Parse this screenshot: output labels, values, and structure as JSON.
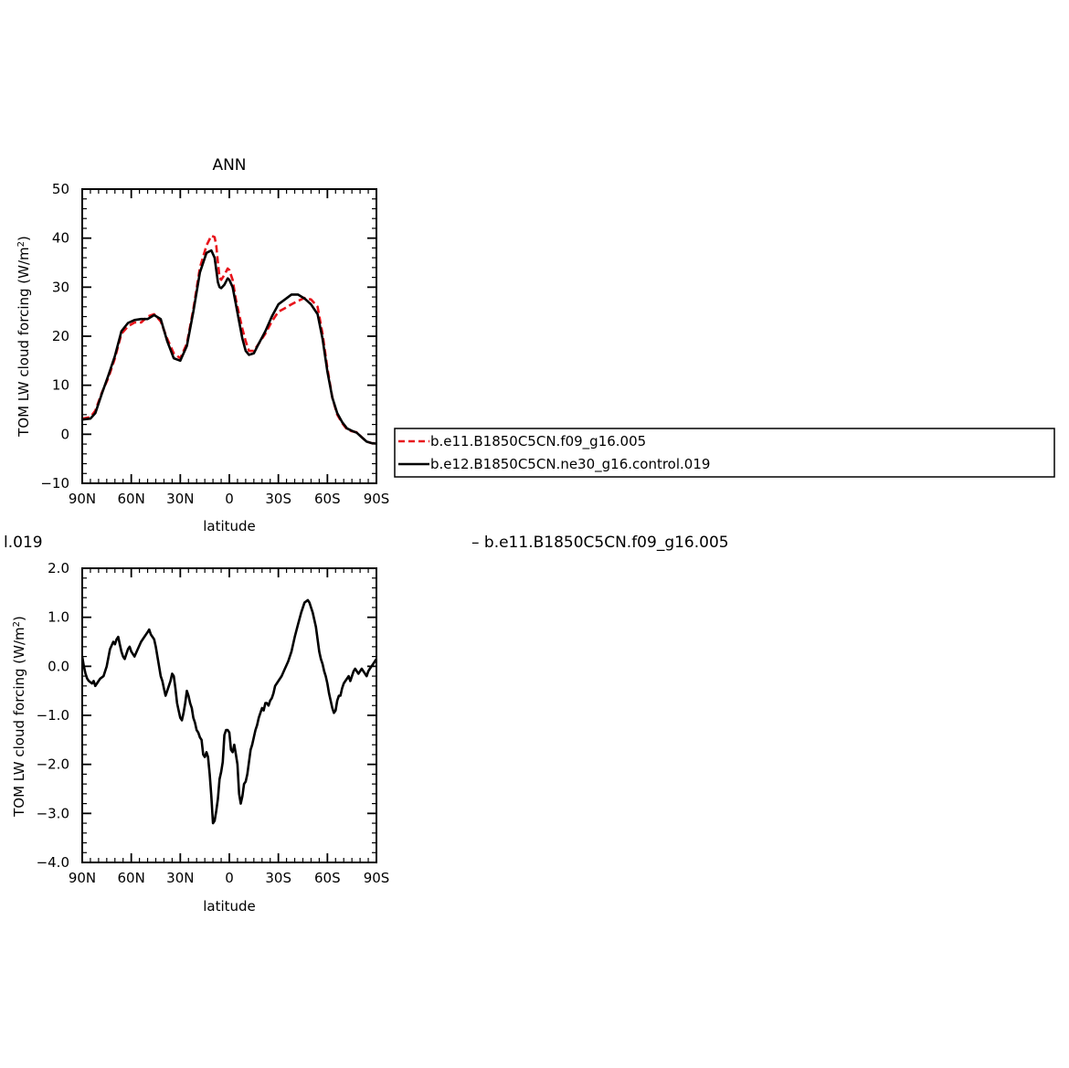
{
  "chart_data": [
    {
      "type": "line",
      "title": "ANN",
      "xlabel": "latitude",
      "ylabel_main": "TOM LW cloud forcing (W/m",
      "ylabel_sup": "2",
      "ylabel_close": ")",
      "xlim": [
        90,
        -90
      ],
      "ylim": [
        -10,
        50
      ],
      "xticks": [
        90,
        60,
        30,
        0,
        -30,
        -60,
        -90
      ],
      "xtick_labels": [
        "90N",
        "60N",
        "30N",
        "0",
        "30S",
        "60S",
        "90S"
      ],
      "yticks": [
        -10,
        0,
        10,
        20,
        30,
        40,
        50
      ],
      "ytick_labels": [
        "−10",
        "0",
        "10",
        "20",
        "30",
        "40",
        "50"
      ],
      "legend": "right",
      "series": [
        {
          "name": "b.e11.B1850C5CN.f09_g16.005",
          "color": "#e8141b",
          "dash": "dashed",
          "x": [
            90,
            85,
            82,
            78,
            74,
            70,
            66,
            62,
            58,
            54,
            50,
            46,
            42,
            38,
            34,
            30,
            26,
            22,
            18,
            14,
            11,
            9,
            8,
            7,
            6,
            5,
            3,
            1,
            0,
            -2,
            -4,
            -6,
            -8,
            -10,
            -12,
            -15,
            -18,
            -22,
            -26,
            -30,
            -34,
            -38,
            -42,
            -46,
            -50,
            -54,
            -57,
            -60,
            -63,
            -66,
            -69,
            -72,
            -75,
            -78,
            -81,
            -84,
            -87,
            -90
          ],
          "y": [
            3.2,
            3.5,
            4.8,
            8.5,
            11.5,
            15.5,
            20.5,
            22.0,
            22.8,
            22.8,
            24.0,
            24.5,
            23.0,
            19.5,
            16.5,
            15.5,
            18.5,
            25.5,
            34.0,
            38.5,
            40.5,
            40.2,
            38.5,
            35.0,
            32.0,
            31.5,
            32.5,
            33.8,
            33.5,
            31.5,
            27.5,
            24.5,
            21.5,
            19.0,
            17.0,
            17.0,
            18.5,
            20.5,
            23.0,
            25.0,
            25.7,
            26.5,
            27.2,
            27.8,
            27.5,
            26.0,
            20.5,
            13.5,
            7.5,
            4.0,
            2.3,
            1.0,
            0.6,
            0.4,
            -0.6,
            -1.5,
            -1.8,
            -1.9
          ]
        },
        {
          "name": "b.e12.B1850C5CN.ne30_g16.control.019",
          "color": "#000000",
          "dash": "solid",
          "x": [
            90,
            85,
            82,
            78,
            74,
            70,
            66,
            62,
            58,
            54,
            50,
            46,
            42,
            38,
            34,
            30,
            26,
            22,
            18,
            14,
            11,
            9,
            8,
            7,
            6,
            5,
            3,
            1,
            0,
            -2,
            -4,
            -6,
            -8,
            -10,
            -12,
            -15,
            -18,
            -22,
            -26,
            -30,
            -34,
            -38,
            -42,
            -46,
            -50,
            -54,
            -57,
            -60,
            -63,
            -66,
            -69,
            -72,
            -75,
            -78,
            -81,
            -84,
            -87,
            -90
          ],
          "y": [
            3.0,
            3.2,
            4.3,
            8.3,
            12.0,
            16.0,
            21.0,
            22.7,
            23.3,
            23.5,
            23.5,
            24.3,
            23.5,
            19.0,
            15.5,
            15.0,
            18.0,
            25.0,
            33.0,
            37.0,
            37.5,
            36.0,
            33.5,
            31.0,
            30.0,
            29.8,
            30.5,
            31.8,
            31.5,
            30.0,
            26.5,
            23.0,
            19.5,
            17.0,
            16.2,
            16.5,
            18.5,
            21.0,
            24.0,
            26.5,
            27.5,
            28.5,
            28.5,
            27.7,
            26.5,
            24.5,
            19.5,
            12.8,
            7.5,
            4.3,
            2.5,
            1.2,
            0.7,
            0.3,
            -0.6,
            -1.5,
            -1.8,
            -1.9
          ]
        }
      ]
    },
    {
      "type": "line",
      "title_fragment_left": "l.019",
      "title_fragment_right": "– b.e11.B1850C5CN.f09_g16.005",
      "xlabel": "latitude",
      "ylabel_main": "TOM LW cloud forcing (W/m",
      "ylabel_sup": "2",
      "ylabel_close": ")",
      "xlim": [
        90,
        -90
      ],
      "ylim": [
        -4.0,
        2.0
      ],
      "xticks": [
        90,
        60,
        30,
        0,
        -30,
        -60,
        -90
      ],
      "xtick_labels": [
        "90N",
        "60N",
        "30N",
        "0",
        "30S",
        "60S",
        "90S"
      ],
      "yticks": [
        -4.0,
        -3.0,
        -2.0,
        -1.0,
        0.0,
        1.0,
        2.0
      ],
      "ytick_labels": [
        "−4.0",
        "−3.0",
        "−2.0",
        "−1.0",
        "0.0",
        "1.0",
        "2.0"
      ],
      "series": [
        {
          "color": "#000000",
          "dash": "solid",
          "x": [
            90,
            89,
            88,
            87,
            86,
            84,
            83,
            82,
            81,
            80,
            79,
            77,
            75,
            73,
            71,
            70,
            69,
            68,
            67,
            66,
            65,
            64,
            63,
            62,
            61,
            60,
            58,
            56,
            54,
            52,
            50,
            49,
            48,
            47,
            46,
            45,
            44,
            43,
            42,
            41,
            40,
            39,
            38,
            37,
            36,
            35,
            34,
            33,
            32,
            31,
            30,
            29,
            28,
            27,
            26,
            25,
            24,
            23,
            22,
            21,
            20,
            19,
            18,
            17,
            16,
            15,
            14,
            13,
            12,
            11,
            10,
            9,
            8,
            7,
            6,
            5,
            4,
            3,
            2,
            1,
            0,
            -1,
            -2,
            -3,
            -4,
            -5,
            -6,
            -7,
            -8,
            -9,
            -10,
            -11,
            -12,
            -13,
            -14,
            -15,
            -16,
            -17,
            -18,
            -19,
            -20,
            -21,
            -22,
            -23,
            -24,
            -25,
            -26,
            -27,
            -28,
            -29,
            -30,
            -32,
            -34,
            -36,
            -38,
            -40,
            -42,
            -44,
            -46,
            -48,
            -49,
            -50,
            -51,
            -52,
            -53,
            -54,
            -55,
            -56,
            -57,
            -58,
            -59,
            -60,
            -61,
            -62,
            -63,
            -64,
            -65,
            -66,
            -67,
            -68,
            -69,
            -70,
            -71,
            -72,
            -73,
            -74,
            -75,
            -76,
            -77,
            -78,
            -79,
            -80,
            -81,
            -82,
            -83,
            -84,
            -85,
            -86,
            -87,
            -88,
            -89,
            -90
          ],
          "y": [
            0.2,
            0.0,
            -0.15,
            -0.25,
            -0.3,
            -0.35,
            -0.3,
            -0.4,
            -0.35,
            -0.3,
            -0.25,
            -0.2,
            0.0,
            0.35,
            0.5,
            0.45,
            0.55,
            0.6,
            0.45,
            0.3,
            0.2,
            0.15,
            0.25,
            0.35,
            0.4,
            0.3,
            0.2,
            0.35,
            0.5,
            0.6,
            0.7,
            0.75,
            0.65,
            0.6,
            0.55,
            0.4,
            0.2,
            0.0,
            -0.2,
            -0.3,
            -0.45,
            -0.6,
            -0.5,
            -0.4,
            -0.3,
            -0.15,
            -0.2,
            -0.45,
            -0.75,
            -0.9,
            -1.05,
            -1.1,
            -0.95,
            -0.75,
            -0.5,
            -0.6,
            -0.75,
            -0.85,
            -1.05,
            -1.15,
            -1.3,
            -1.35,
            -1.45,
            -1.5,
            -1.8,
            -1.85,
            -1.75,
            -1.85,
            -2.2,
            -2.65,
            -3.2,
            -3.15,
            -2.95,
            -2.7,
            -2.3,
            -2.15,
            -1.95,
            -1.4,
            -1.3,
            -1.3,
            -1.35,
            -1.7,
            -1.75,
            -1.6,
            -1.8,
            -2.0,
            -2.6,
            -2.8,
            -2.65,
            -2.4,
            -2.35,
            -2.2,
            -1.95,
            -1.7,
            -1.6,
            -1.45,
            -1.3,
            -1.2,
            -1.05,
            -0.95,
            -0.85,
            -0.9,
            -0.75,
            -0.75,
            -0.8,
            -0.7,
            -0.65,
            -0.55,
            -0.4,
            -0.35,
            -0.3,
            -0.2,
            -0.05,
            0.1,
            0.3,
            0.6,
            0.85,
            1.1,
            1.3,
            1.35,
            1.3,
            1.2,
            1.1,
            0.95,
            0.8,
            0.55,
            0.3,
            0.15,
            0.05,
            -0.1,
            -0.2,
            -0.35,
            -0.55,
            -0.7,
            -0.85,
            -0.95,
            -0.9,
            -0.7,
            -0.6,
            -0.6,
            -0.45,
            -0.35,
            -0.3,
            -0.25,
            -0.2,
            -0.3,
            -0.2,
            -0.1,
            -0.05,
            -0.1,
            -0.15,
            -0.1,
            -0.05,
            -0.1,
            -0.15,
            -0.2,
            -0.1,
            -0.05,
            0.0,
            0.05,
            0.1,
            0.15
          ]
        }
      ]
    }
  ]
}
